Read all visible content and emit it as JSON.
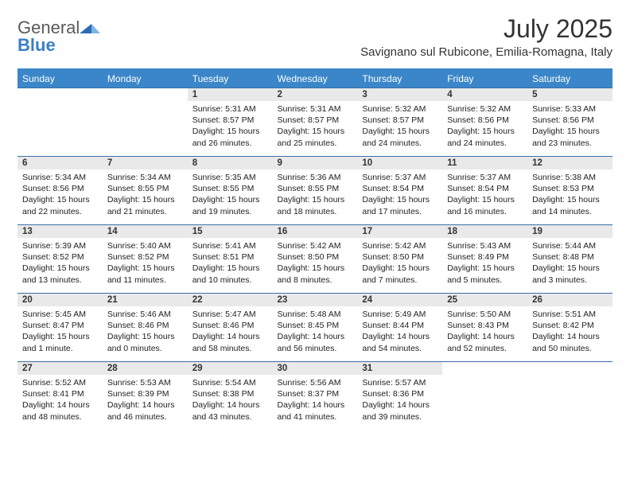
{
  "brand": {
    "part1": "General",
    "part2": "Blue"
  },
  "title": "July 2025",
  "location": "Savignano sul Rubicone, Emilia-Romagna, Italy",
  "colors": {
    "header_bg": "#3a86c8",
    "header_text": "#ffffff",
    "daynum_bg": "#e9e9e9",
    "rule": "#3a6fa8",
    "brand_gray": "#5a5a5a",
    "brand_blue": "#3a7fc4"
  },
  "weekdays": [
    "Sunday",
    "Monday",
    "Tuesday",
    "Wednesday",
    "Thursday",
    "Friday",
    "Saturday"
  ],
  "weeks": [
    [
      null,
      null,
      {
        "n": "1",
        "sr": "5:31 AM",
        "ss": "8:57 PM",
        "dl": "15 hours and 26 minutes."
      },
      {
        "n": "2",
        "sr": "5:31 AM",
        "ss": "8:57 PM",
        "dl": "15 hours and 25 minutes."
      },
      {
        "n": "3",
        "sr": "5:32 AM",
        "ss": "8:57 PM",
        "dl": "15 hours and 24 minutes."
      },
      {
        "n": "4",
        "sr": "5:32 AM",
        "ss": "8:56 PM",
        "dl": "15 hours and 24 minutes."
      },
      {
        "n": "5",
        "sr": "5:33 AM",
        "ss": "8:56 PM",
        "dl": "15 hours and 23 minutes."
      }
    ],
    [
      {
        "n": "6",
        "sr": "5:34 AM",
        "ss": "8:56 PM",
        "dl": "15 hours and 22 minutes."
      },
      {
        "n": "7",
        "sr": "5:34 AM",
        "ss": "8:55 PM",
        "dl": "15 hours and 21 minutes."
      },
      {
        "n": "8",
        "sr": "5:35 AM",
        "ss": "8:55 PM",
        "dl": "15 hours and 19 minutes."
      },
      {
        "n": "9",
        "sr": "5:36 AM",
        "ss": "8:55 PM",
        "dl": "15 hours and 18 minutes."
      },
      {
        "n": "10",
        "sr": "5:37 AM",
        "ss": "8:54 PM",
        "dl": "15 hours and 17 minutes."
      },
      {
        "n": "11",
        "sr": "5:37 AM",
        "ss": "8:54 PM",
        "dl": "15 hours and 16 minutes."
      },
      {
        "n": "12",
        "sr": "5:38 AM",
        "ss": "8:53 PM",
        "dl": "15 hours and 14 minutes."
      }
    ],
    [
      {
        "n": "13",
        "sr": "5:39 AM",
        "ss": "8:52 PM",
        "dl": "15 hours and 13 minutes."
      },
      {
        "n": "14",
        "sr": "5:40 AM",
        "ss": "8:52 PM",
        "dl": "15 hours and 11 minutes."
      },
      {
        "n": "15",
        "sr": "5:41 AM",
        "ss": "8:51 PM",
        "dl": "15 hours and 10 minutes."
      },
      {
        "n": "16",
        "sr": "5:42 AM",
        "ss": "8:50 PM",
        "dl": "15 hours and 8 minutes."
      },
      {
        "n": "17",
        "sr": "5:42 AM",
        "ss": "8:50 PM",
        "dl": "15 hours and 7 minutes."
      },
      {
        "n": "18",
        "sr": "5:43 AM",
        "ss": "8:49 PM",
        "dl": "15 hours and 5 minutes."
      },
      {
        "n": "19",
        "sr": "5:44 AM",
        "ss": "8:48 PM",
        "dl": "15 hours and 3 minutes."
      }
    ],
    [
      {
        "n": "20",
        "sr": "5:45 AM",
        "ss": "8:47 PM",
        "dl": "15 hours and 1 minute."
      },
      {
        "n": "21",
        "sr": "5:46 AM",
        "ss": "8:46 PM",
        "dl": "15 hours and 0 minutes."
      },
      {
        "n": "22",
        "sr": "5:47 AM",
        "ss": "8:46 PM",
        "dl": "14 hours and 58 minutes."
      },
      {
        "n": "23",
        "sr": "5:48 AM",
        "ss": "8:45 PM",
        "dl": "14 hours and 56 minutes."
      },
      {
        "n": "24",
        "sr": "5:49 AM",
        "ss": "8:44 PM",
        "dl": "14 hours and 54 minutes."
      },
      {
        "n": "25",
        "sr": "5:50 AM",
        "ss": "8:43 PM",
        "dl": "14 hours and 52 minutes."
      },
      {
        "n": "26",
        "sr": "5:51 AM",
        "ss": "8:42 PM",
        "dl": "14 hours and 50 minutes."
      }
    ],
    [
      {
        "n": "27",
        "sr": "5:52 AM",
        "ss": "8:41 PM",
        "dl": "14 hours and 48 minutes."
      },
      {
        "n": "28",
        "sr": "5:53 AM",
        "ss": "8:39 PM",
        "dl": "14 hours and 46 minutes."
      },
      {
        "n": "29",
        "sr": "5:54 AM",
        "ss": "8:38 PM",
        "dl": "14 hours and 43 minutes."
      },
      {
        "n": "30",
        "sr": "5:56 AM",
        "ss": "8:37 PM",
        "dl": "14 hours and 41 minutes."
      },
      {
        "n": "31",
        "sr": "5:57 AM",
        "ss": "8:36 PM",
        "dl": "14 hours and 39 minutes."
      },
      null,
      null
    ]
  ],
  "labels": {
    "sunrise": "Sunrise:",
    "sunset": "Sunset:",
    "daylight": "Daylight:"
  }
}
